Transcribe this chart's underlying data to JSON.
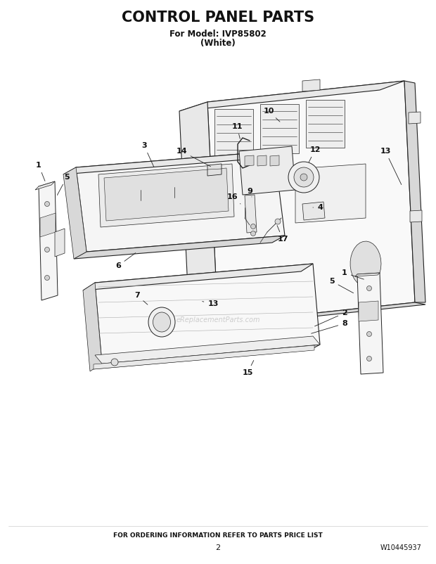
{
  "title": "CONTROL PANEL PARTS",
  "subtitle1": "For Model: IVP85802",
  "subtitle2": "(White)",
  "footer_center": "FOR ORDERING INFORMATION REFER TO PARTS PRICE LIST",
  "footer_page": "2",
  "footer_right": "W10445937",
  "bg_color": "#ffffff",
  "title_fontsize": 15,
  "subtitle_fontsize": 8.5,
  "footer_fontsize": 6.5,
  "line_color": "#222222",
  "fill_light": "#f5f5f5",
  "fill_mid": "#e8e8e8",
  "fill_dark": "#d8d8d8",
  "watermark": "eReplacementParts.com"
}
